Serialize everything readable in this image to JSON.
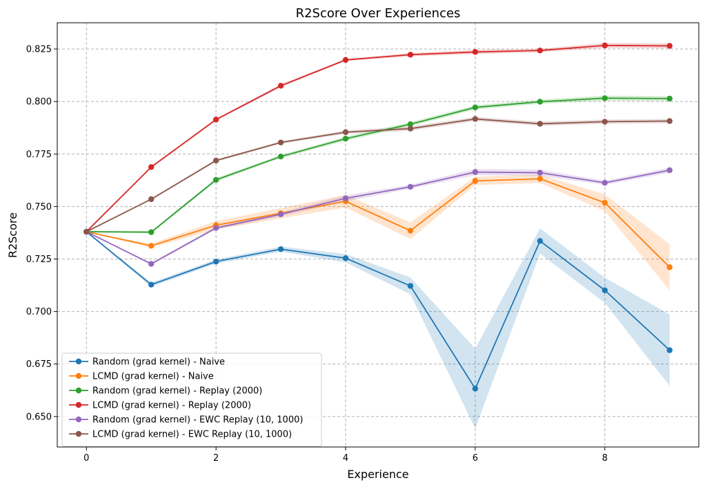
{
  "chart_data": {
    "type": "line",
    "title": "R2Score Over Experiences",
    "xlabel": "Experience",
    "ylabel": "R2Score",
    "xlim": [
      -0.45,
      9.45
    ],
    "ylim": [
      0.6355,
      0.8375
    ],
    "xticks": [
      0,
      2,
      4,
      6,
      8
    ],
    "yticks": [
      0.65,
      0.675,
      0.7,
      0.725,
      0.75,
      0.775,
      0.8,
      0.825
    ],
    "ytick_labels": [
      "0.650",
      "0.675",
      "0.700",
      "0.725",
      "0.750",
      "0.775",
      "0.800",
      "0.825"
    ],
    "grid": true,
    "legend_position": "lower-left",
    "x": [
      0,
      1,
      2,
      3,
      4,
      5,
      6,
      7,
      8,
      9
    ],
    "series": [
      {
        "name": "Random (grad kernel) - Naive",
        "color": "#1f77b4",
        "values": [
          0.738,
          0.7128,
          0.7238,
          0.7297,
          0.7254,
          0.7122,
          0.6633,
          0.7336,
          0.7101,
          0.6816
        ],
        "band_low": [
          0.738,
          0.7118,
          0.7228,
          0.7285,
          0.7234,
          0.7082,
          0.6443,
          0.7276,
          0.7041,
          0.6646
        ],
        "band_high": [
          0.738,
          0.7138,
          0.7248,
          0.7309,
          0.7274,
          0.7162,
          0.6823,
          0.7396,
          0.7161,
          0.6986
        ]
      },
      {
        "name": "LCMD (grad kernel) - Naive",
        "color": "#ff7f0e",
        "values": [
          0.738,
          0.7313,
          0.7411,
          0.7468,
          0.7525,
          0.7385,
          0.7622,
          0.7632,
          0.7518,
          0.7211
        ],
        "band_low": [
          0.738,
          0.7303,
          0.7391,
          0.7443,
          0.7495,
          0.7345,
          0.7602,
          0.7612,
          0.7478,
          0.7101
        ],
        "band_high": [
          0.738,
          0.7323,
          0.7431,
          0.7493,
          0.7555,
          0.7425,
          0.7642,
          0.7652,
          0.7558,
          0.7321
        ]
      },
      {
        "name": "Random (grad kernel) - Replay (2000)",
        "color": "#2ca02c",
        "values": [
          0.738,
          0.7378,
          0.7627,
          0.7738,
          0.7823,
          0.7892,
          0.7972,
          0.7999,
          0.8016,
          0.8014
        ],
        "band_low": [
          0.738,
          0.7373,
          0.7619,
          0.7731,
          0.7813,
          0.7882,
          0.7962,
          0.7989,
          0.8004,
          0.8002
        ],
        "band_high": [
          0.738,
          0.7383,
          0.7635,
          0.7745,
          0.7833,
          0.7902,
          0.7982,
          0.8009,
          0.8028,
          0.8026
        ]
      },
      {
        "name": "LCMD (grad kernel) - Replay (2000)",
        "color": "#d62728",
        "values": [
          0.738,
          0.7688,
          0.7914,
          0.8075,
          0.8198,
          0.8223,
          0.8236,
          0.8243,
          0.8267,
          0.8265
        ],
        "band_low": [
          0.738,
          0.7683,
          0.7909,
          0.8068,
          0.8193,
          0.8215,
          0.8226,
          0.8235,
          0.8255,
          0.8253
        ],
        "band_high": [
          0.738,
          0.7693,
          0.7919,
          0.8082,
          0.8203,
          0.8231,
          0.8246,
          0.8251,
          0.8279,
          0.8277
        ]
      },
      {
        "name": "Random (grad kernel) - EWC Replay (10, 1000)",
        "color": "#9467bd",
        "values": [
          0.738,
          0.7227,
          0.7398,
          0.7463,
          0.7539,
          0.7594,
          0.7664,
          0.7661,
          0.7613,
          0.7673
        ],
        "band_low": [
          0.738,
          0.7222,
          0.7391,
          0.7453,
          0.7524,
          0.7584,
          0.7649,
          0.7646,
          0.7603,
          0.7661
        ],
        "band_high": [
          0.738,
          0.7232,
          0.7405,
          0.7473,
          0.7554,
          0.7604,
          0.7679,
          0.7676,
          0.7623,
          0.7685
        ]
      },
      {
        "name": "LCMD (grad kernel) - EWC Replay (10, 1000)",
        "color": "#8c564b",
        "values": [
          0.738,
          0.7535,
          0.7719,
          0.7805,
          0.7854,
          0.7871,
          0.7917,
          0.7894,
          0.7904,
          0.7907
        ],
        "band_low": [
          0.738,
          0.7531,
          0.7714,
          0.7799,
          0.7846,
          0.7861,
          0.7907,
          0.7884,
          0.7894,
          0.7897
        ],
        "band_high": [
          0.738,
          0.7539,
          0.7724,
          0.7811,
          0.7862,
          0.7881,
          0.7927,
          0.7904,
          0.7914,
          0.7917
        ]
      }
    ]
  }
}
